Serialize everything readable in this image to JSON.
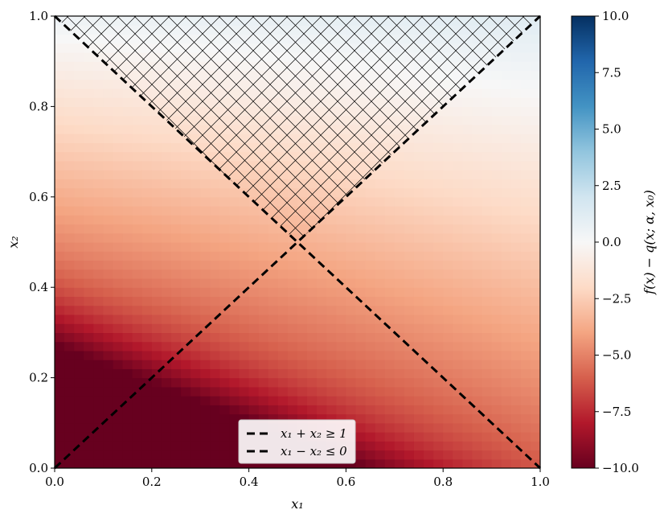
{
  "chart_data": {
    "type": "heatmap",
    "title": "",
    "xlabel": "x₁",
    "ylabel": "x₂",
    "xlim": [
      0.0,
      1.0
    ],
    "ylim": [
      0.0,
      1.0
    ],
    "x_ticks": [
      "0.0",
      "0.2",
      "0.4",
      "0.6",
      "0.8",
      "1.0"
    ],
    "y_ticks": [
      "0.0",
      "0.2",
      "0.4",
      "0.6",
      "0.8",
      "1.0"
    ],
    "grid": false,
    "field": {
      "description_values": "f(x) - q(x; α, x₀) over x₁, x₂ in [0,1]",
      "corner_values": {
        "x0_y0": -10.0,
        "x1_y0": -6.0,
        "x0_y1": 0.5,
        "x1_y1": 1.2
      },
      "min_region_value": -10.0,
      "max_region_value": 1.5
    },
    "lines": [
      {
        "name": "x₁ + x₂ ≥ 1",
        "style": "dashed",
        "color": "#000000",
        "x": [
          0.0,
          1.0
        ],
        "y": [
          1.0,
          0.0
        ]
      },
      {
        "name": "x₁ − x₂ ≤ 0",
        "style": "dashed",
        "color": "#000000",
        "x": [
          0.0,
          1.0
        ],
        "y": [
          0.0,
          1.0
        ]
      }
    ],
    "hatched_region": {
      "pattern": "crosshatch",
      "x_vertices": [
        0.0,
        0.5,
        1.0
      ],
      "y_vertices": [
        1.0,
        0.5,
        1.0
      ]
    },
    "legend": {
      "placement": "lower center",
      "entries": [
        "x₁ + x₂ ≥ 1",
        "x₁ − x₂ ≤ 0"
      ]
    },
    "colorbar": {
      "label": "f(x) − q(x; α, x₀)",
      "colormap": "RdBu",
      "vmin": -10.0,
      "vmax": 10.0,
      "ticks": [
        "10.0",
        "7.5",
        "5.0",
        "2.5",
        "0.0",
        "−2.5",
        "−5.0",
        "−7.5",
        "−10.0"
      ]
    }
  },
  "colors": {
    "rdbu": [
      "#67001f",
      "#b2182b",
      "#d6604d",
      "#f4a582",
      "#fddbc7",
      "#f7f7f7",
      "#d1e5f0",
      "#92c5de",
      "#4393c3",
      "#2166ac",
      "#053061"
    ]
  }
}
